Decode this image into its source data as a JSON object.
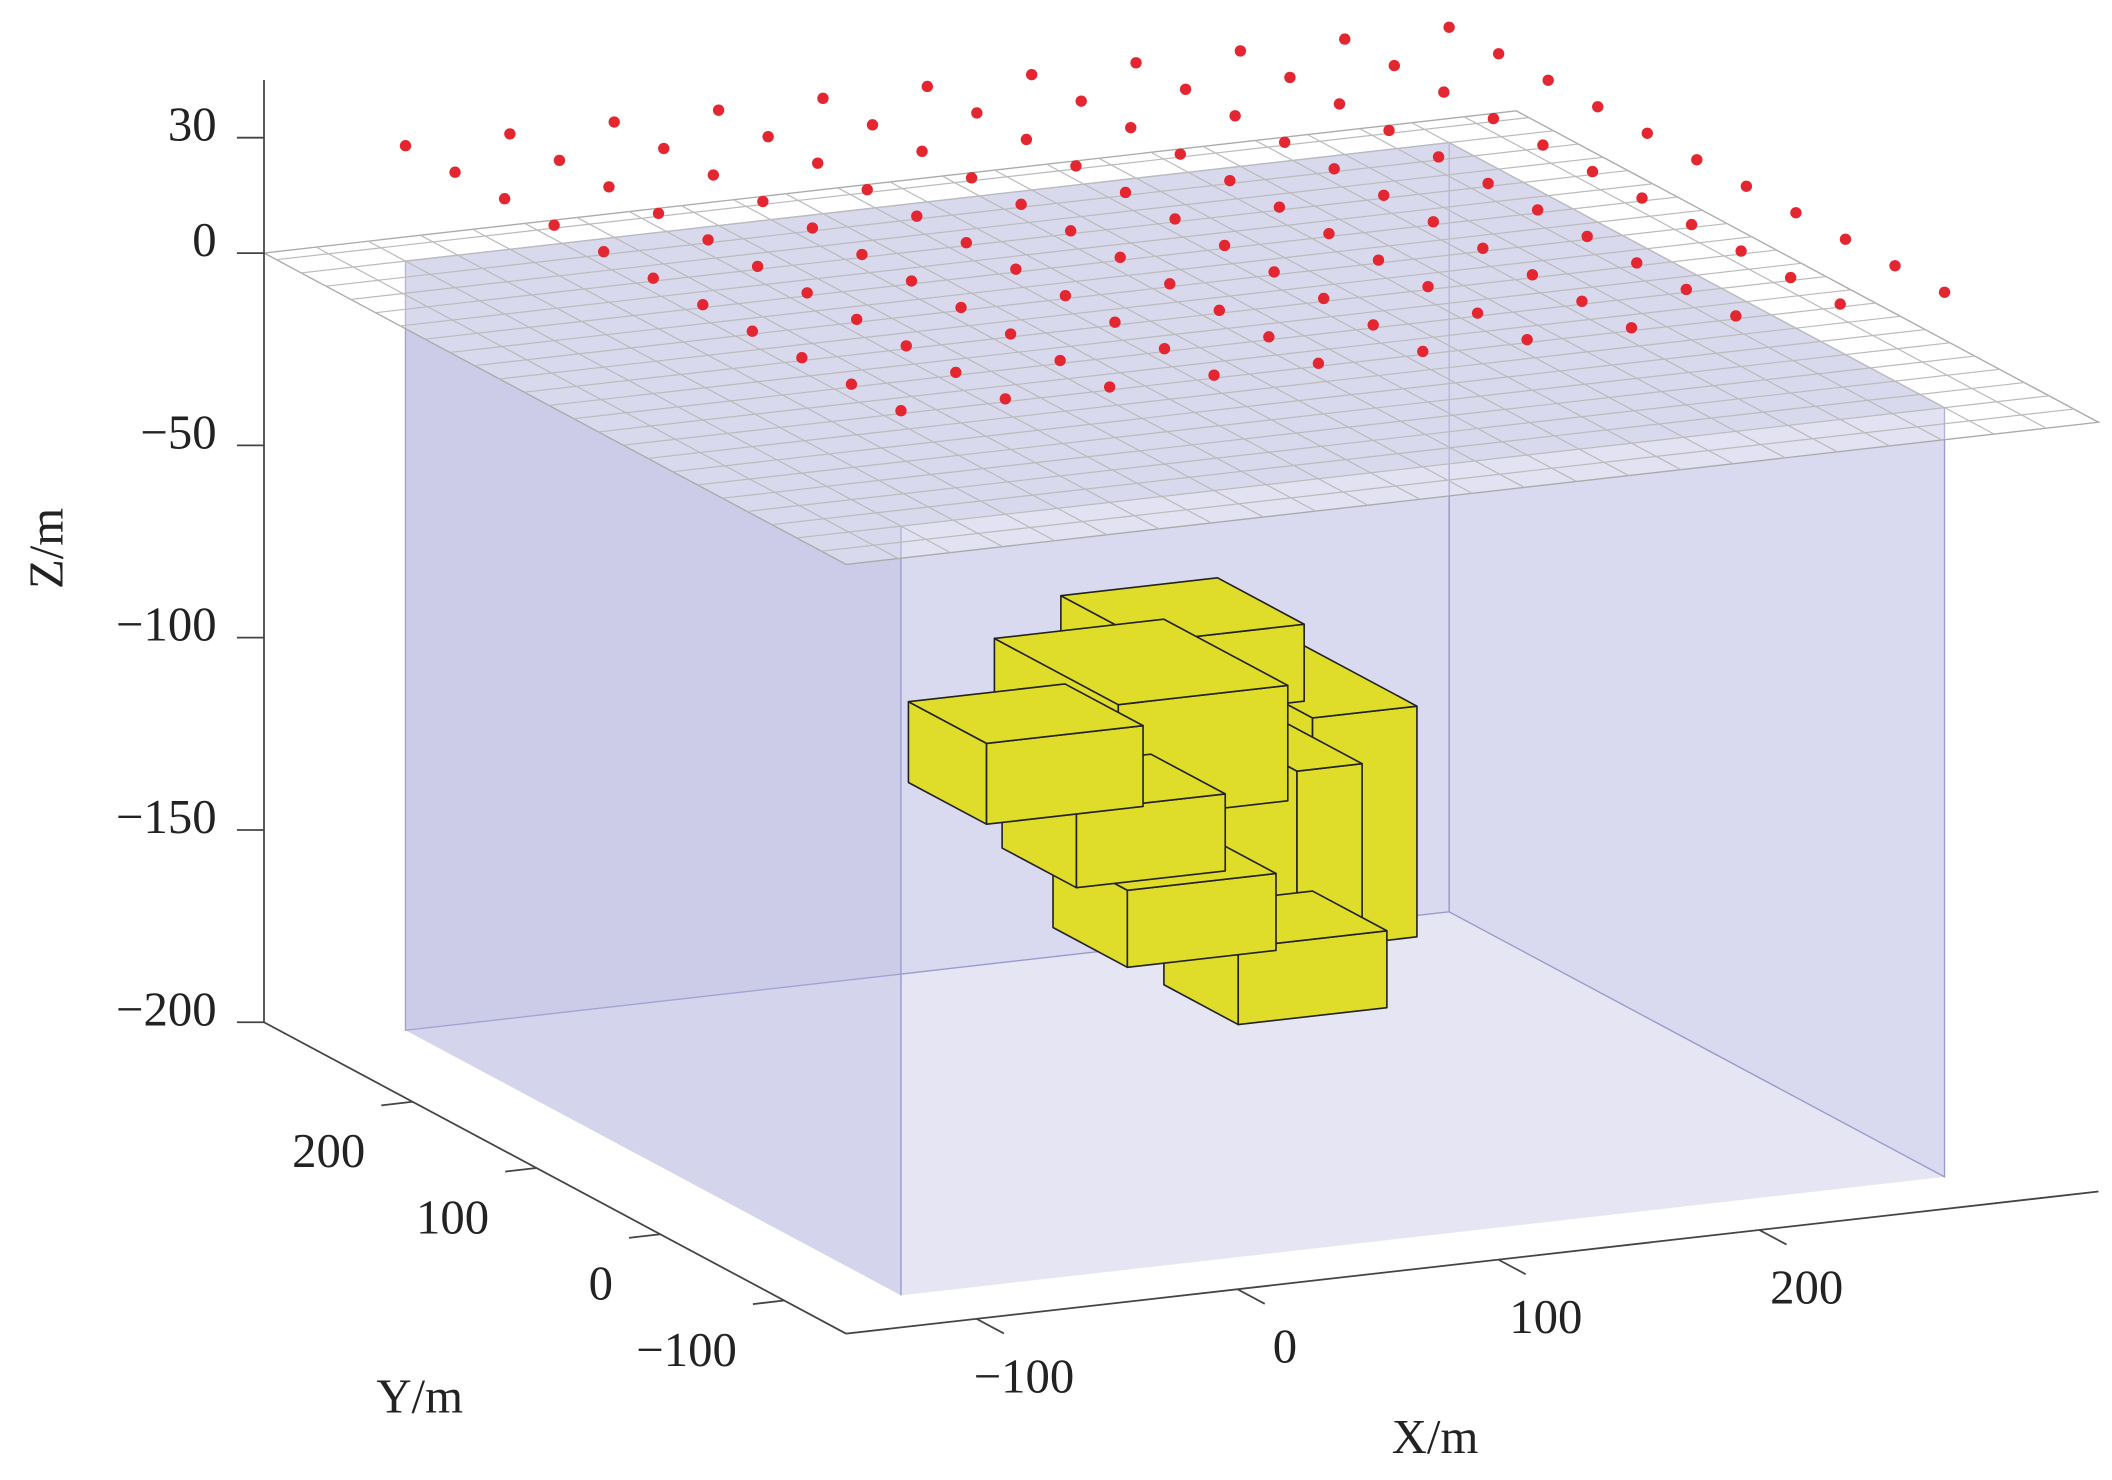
{
  "chart_data": {
    "type": "scatter3d",
    "xlabel": "X/m",
    "ylabel": "Y/m",
    "zlabel": "Z/m",
    "xlim": [
      -150,
      330
    ],
    "ylim": [
      -150,
      320
    ],
    "zlim": [
      -200,
      45
    ],
    "xticks": [
      {
        "value": -100,
        "label": "−100"
      },
      0,
      100,
      200
    ],
    "yticks": [
      {
        "value": -100,
        "label": "−100"
      },
      0,
      100,
      200
    ],
    "zticks": [
      {
        "value": -200,
        "label": "−200"
      },
      {
        "value": -150,
        "label": "−150"
      },
      {
        "value": -100,
        "label": "−100"
      },
      {
        "value": -50,
        "label": "−50"
      },
      0,
      30
    ],
    "surface_z": 0,
    "stations": {
      "x": [
        -110,
        -70,
        -30,
        10,
        50,
        90,
        130,
        170,
        210,
        250,
        290
      ],
      "y": [
        -110,
        -70,
        -30,
        10,
        50,
        90,
        130,
        170,
        210,
        250,
        290
      ],
      "z": 30,
      "color": "#e3262f"
    },
    "domain": {
      "x": [
        -110,
        290
      ],
      "y": [
        -110,
        290
      ],
      "z": [
        -200,
        0
      ],
      "color": "#b4b4e0"
    },
    "block_color": "#e0dc2a",
    "blocks": [
      {
        "x": [
          70,
          130
        ],
        "y": [
          70,
          140
        ],
        "z": [
          -95,
          -75
        ]
      },
      {
        "x": [
          35,
          100
        ],
        "y": [
          20,
          120
        ],
        "z": [
          -110,
          -80
        ]
      },
      {
        "x": [
          100,
          140
        ],
        "y": [
          0,
          120
        ],
        "z": [
          -145,
          -85
        ]
      },
      {
        "x": [
          75,
          100
        ],
        "y": [
          -40,
          100
        ],
        "z": [
          -150,
          -90
        ]
      },
      {
        "x": [
          -25,
          35
        ],
        "y": [
          0,
          63
        ],
        "z": [
          -103,
          -82
        ]
      },
      {
        "x": [
          0,
          57
        ],
        "y": [
          -20,
          40
        ],
        "z": [
          -118,
          -98
        ]
      },
      {
        "x": [
          10,
          67
        ],
        "y": [
          -40,
          20
        ],
        "z": [
          -136,
          -116
        ]
      },
      {
        "x": [
          43,
          100
        ],
        "y": [
          -60,
          0
        ],
        "z": [
          -150,
          -130
        ]
      }
    ]
  }
}
